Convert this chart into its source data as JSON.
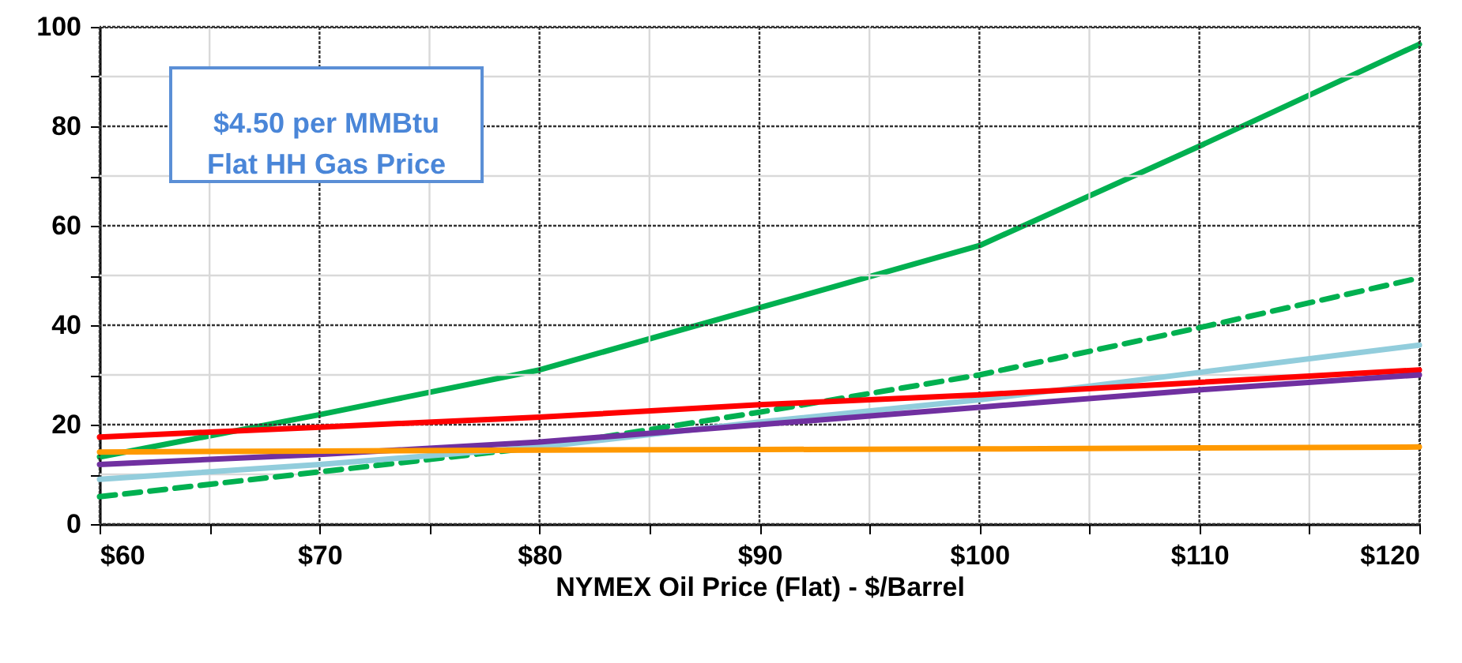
{
  "chart_data": {
    "type": "line",
    "xlabel": "NYMEX Oil Price (Flat) - $/Barrel",
    "annotations": [
      "$4.50 per MMBtu\nFlat HH Gas Price"
    ],
    "x": [
      60,
      70,
      80,
      90,
      100,
      110,
      120
    ],
    "series": [
      {
        "color": "#00b050",
        "values": [
          13.5,
          22,
          31,
          43.5,
          56,
          76,
          96.5
        ]
      },
      {
        "color": "#00b050",
        "line_style": "dashed",
        "values": [
          5.5,
          10.5,
          15.5,
          22.5,
          30,
          39.5,
          49.5
        ]
      },
      {
        "color": "#92cddc",
        "values": [
          9,
          12,
          15.5,
          20.5,
          25,
          30.5,
          36
        ]
      },
      {
        "color": "#ff0000",
        "values": [
          17.5,
          19.5,
          21.5,
          24,
          26,
          28.5,
          31
        ]
      },
      {
        "color": "#7030a0",
        "values": [
          12,
          14,
          16.5,
          20,
          23.5,
          27,
          30
        ]
      },
      {
        "color": "#ff9900",
        "values": [
          14.5,
          14.7,
          14.9,
          15,
          15.1,
          15.3,
          15.5
        ]
      }
    ],
    "xlim": [
      60,
      120
    ],
    "xticks": [
      {
        "value": 60,
        "label": "$60"
      },
      {
        "value": 65,
        "label": null
      },
      {
        "value": 70,
        "label": "$70"
      },
      {
        "value": 75,
        "label": null
      },
      {
        "value": 80,
        "label": "$80"
      },
      {
        "value": 85,
        "label": null
      },
      {
        "value": 90,
        "label": "$90"
      },
      {
        "value": 95,
        "label": null
      },
      {
        "value": 100,
        "label": "$100"
      },
      {
        "value": 105,
        "label": null
      },
      {
        "value": 110,
        "label": "$110"
      },
      {
        "value": 115,
        "label": null
      },
      {
        "value": 120,
        "label": "$120"
      }
    ],
    "ylim": [
      0,
      100
    ],
    "yticks": [
      0,
      {
        "value": 10,
        "label": null
      },
      20,
      {
        "value": 30,
        "label": null
      },
      40,
      {
        "value": 50,
        "label": null
      },
      60,
      {
        "value": 70,
        "label": null
      },
      80,
      {
        "value": 90,
        "label": null
      },
      100
    ],
    "grid": true,
    "marker": "none",
    "line_style": "solid"
  }
}
